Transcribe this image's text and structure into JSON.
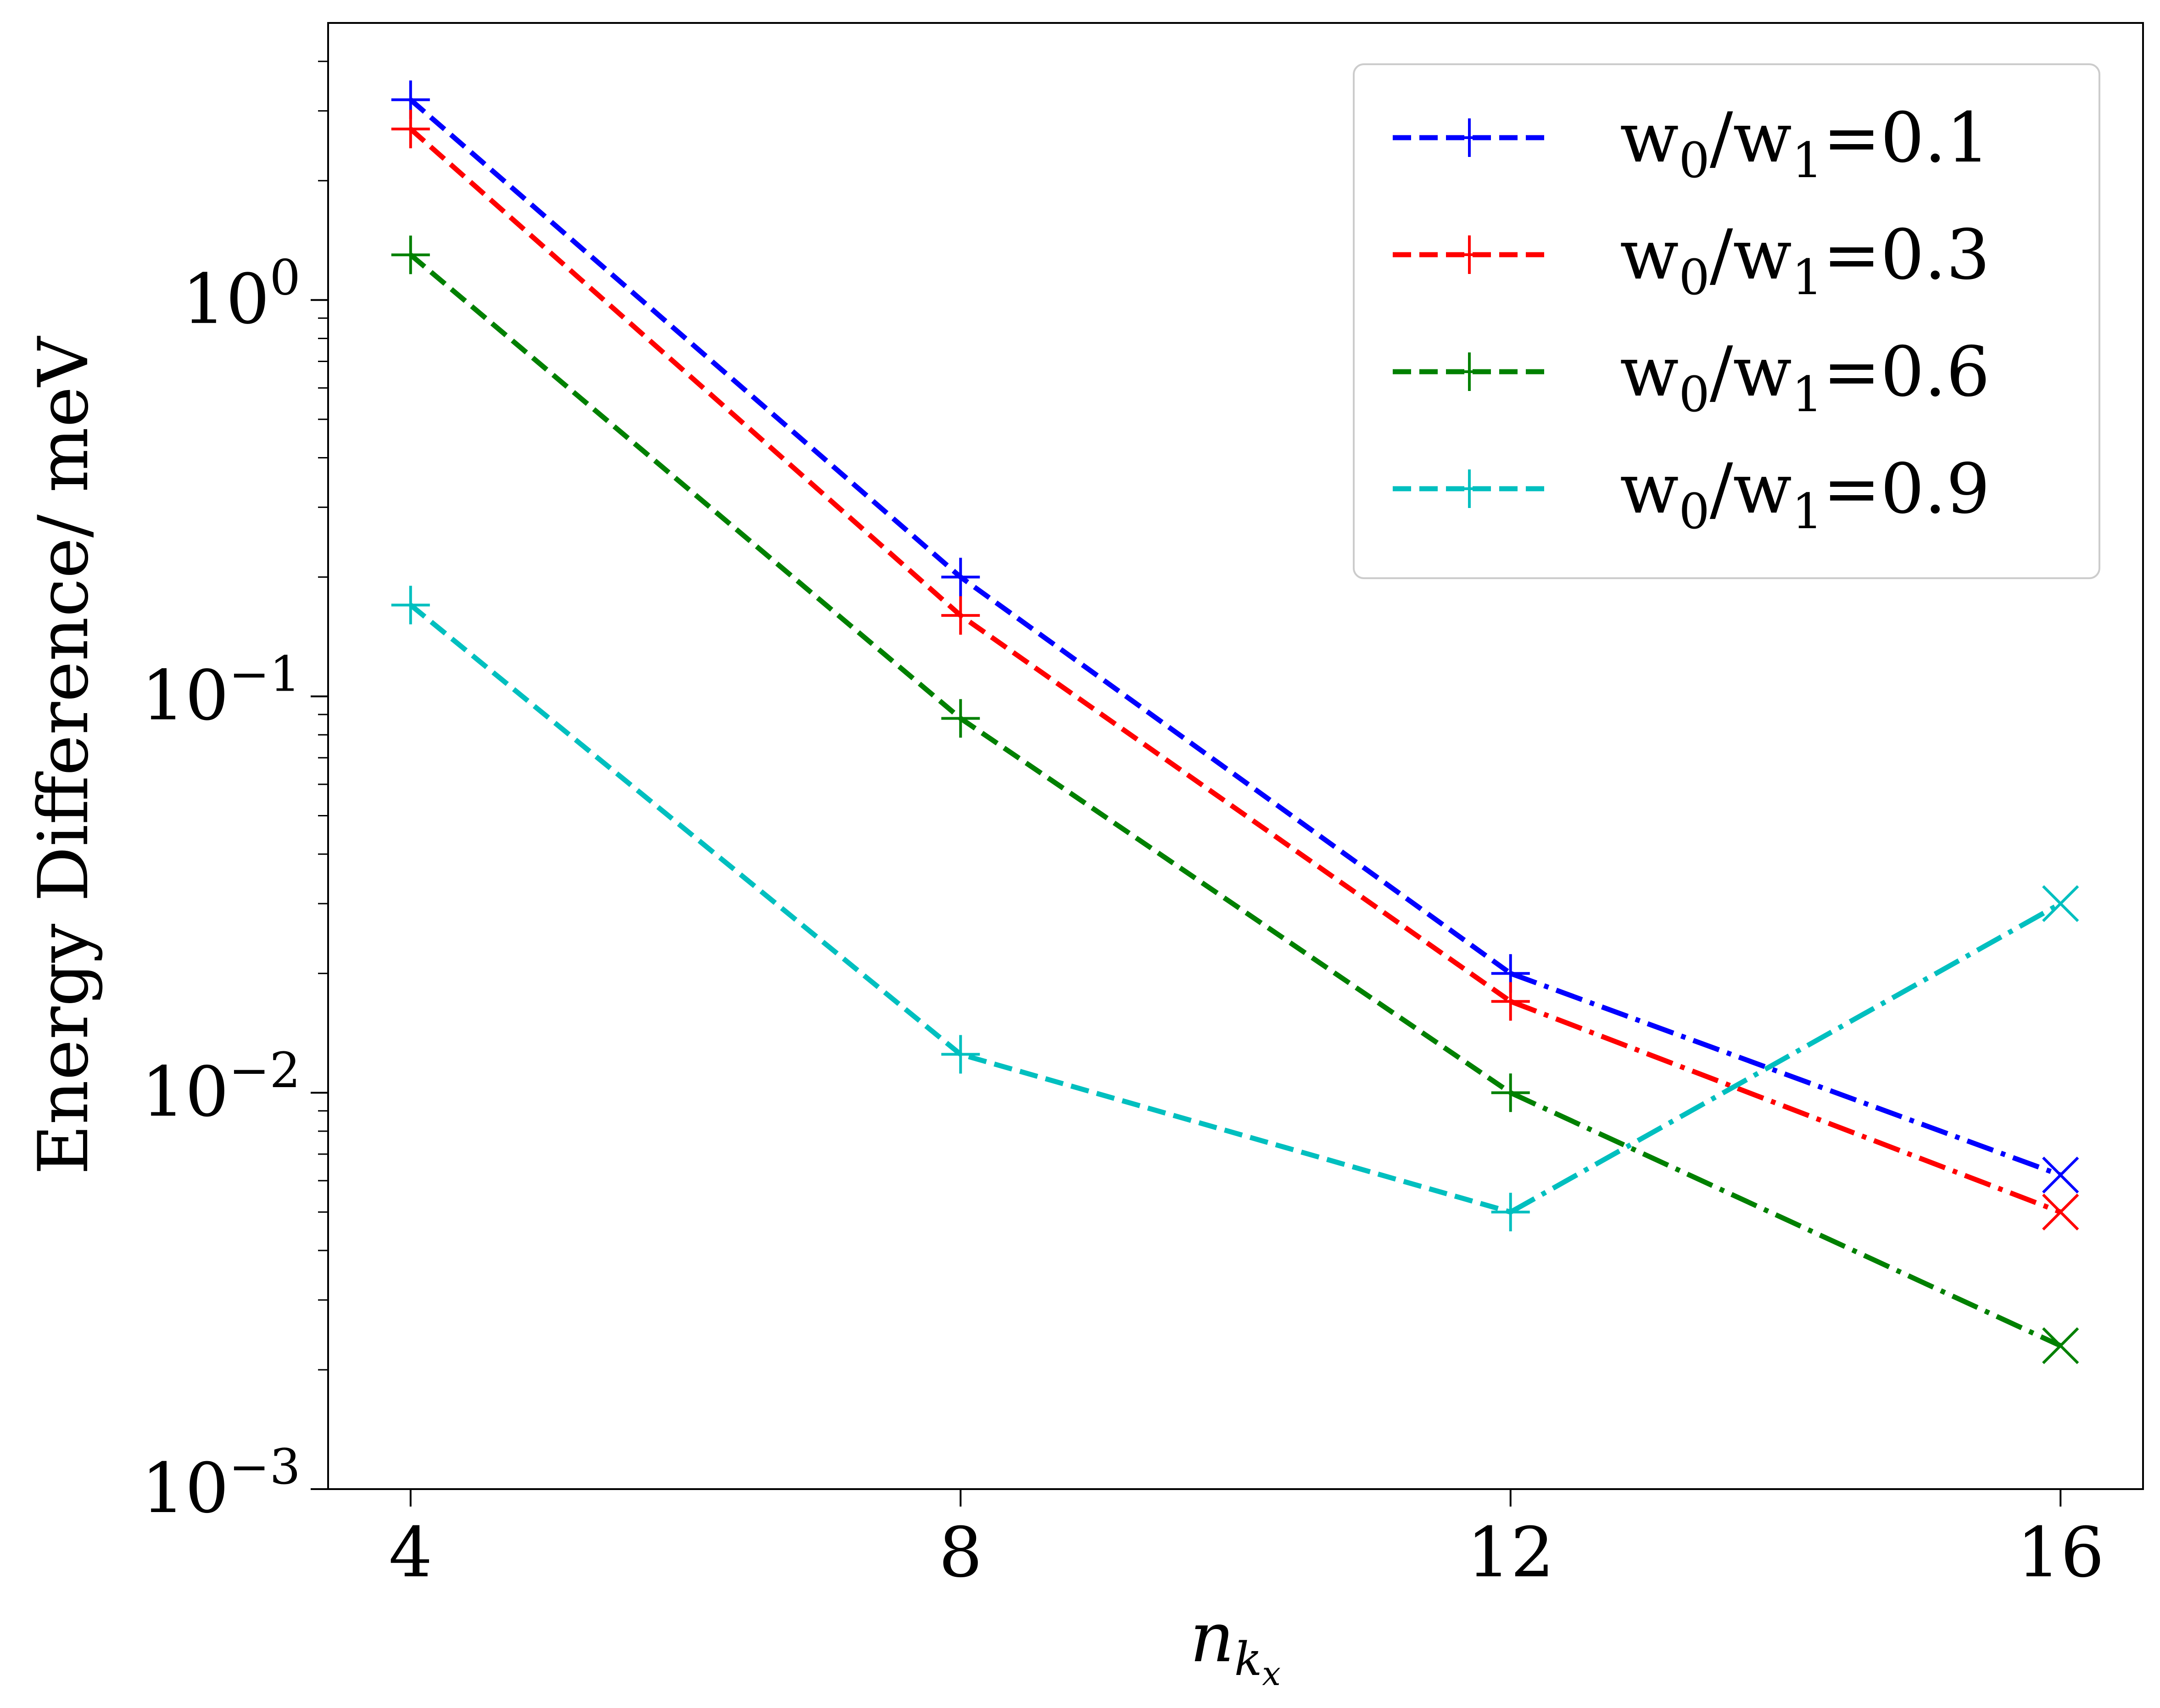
{
  "chart_data": {
    "type": "line",
    "title": "",
    "xlabel": "n",
    "xlabel_subscript": "k",
    "xlabel_subsubscript": "x",
    "ylabel": "Energy Difference/ meV",
    "yscale": "log",
    "ylim": [
      0.001,
      5
    ],
    "xlim": [
      3.4,
      16.6
    ],
    "xticks": [
      4,
      8,
      12,
      16
    ],
    "xtick_labels": [
      "4",
      "8",
      "12",
      "16"
    ],
    "yticks": [
      {
        "value": 0.001,
        "base": "10",
        "exp": "−3"
      },
      {
        "value": 0.01,
        "base": "10",
        "exp": "−2"
      },
      {
        "value": 0.1,
        "base": "10",
        "exp": "−1"
      },
      {
        "value": 1,
        "base": "10",
        "exp": "0"
      }
    ],
    "grid": false,
    "legend_position": "top-right",
    "x": [
      4,
      8,
      12,
      16
    ],
    "series": [
      {
        "name": "w0/w1=0.1",
        "label_main": "w",
        "sub0": "0",
        "label_slash": "/w",
        "sub1": "1",
        "label_value": "=0.1",
        "color": "#0000ff",
        "values": [
          3.2,
          0.2,
          0.02,
          0.0062
        ]
      },
      {
        "name": "w0/w1=0.3",
        "label_main": "w",
        "sub0": "0",
        "label_slash": "/w",
        "sub1": "1",
        "label_value": "=0.3",
        "color": "#ff0000",
        "values": [
          2.7,
          0.16,
          0.017,
          0.005
        ]
      },
      {
        "name": "w0/w1=0.6",
        "label_main": "w",
        "sub0": "0",
        "label_slash": "/w",
        "sub1": "1",
        "label_value": "=0.6",
        "color": "#008000",
        "values": [
          1.3,
          0.088,
          0.01,
          0.0023
        ]
      },
      {
        "name": "w0/w1=0.9",
        "label_main": "w",
        "sub0": "0",
        "label_slash": "/w",
        "sub1": "1",
        "label_value": "=0.9",
        "color": "#00bfbf",
        "values": [
          0.17,
          0.0125,
          0.005,
          0.03
        ]
      }
    ],
    "line_styles": {
      "segments_1_3": "dashed",
      "segment_3_4": "dash-dot"
    },
    "markers": {
      "points_1_3": "plus",
      "point_4": "x"
    }
  }
}
